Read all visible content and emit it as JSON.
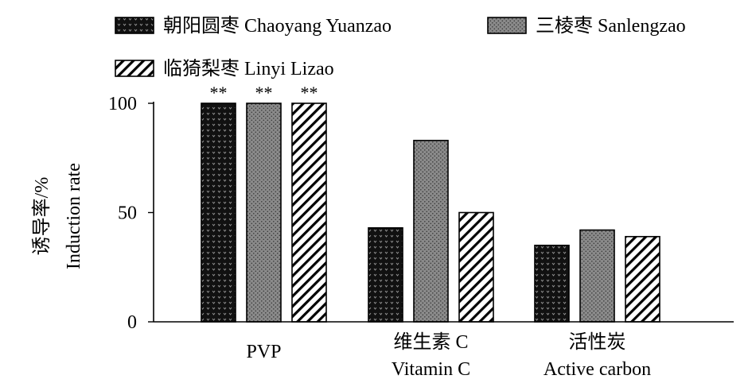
{
  "chart_data": {
    "type": "bar",
    "title": "",
    "xlabel": "",
    "ylabel_cn": "诱导率/%",
    "ylabel_en": "Induction rate",
    "ylim": [
      0,
      100
    ],
    "yticks": [
      0,
      50,
      100
    ],
    "grid": false,
    "legend_position": "top",
    "categories": [
      {
        "cn": "",
        "en": "PVP"
      },
      {
        "cn": "维生素 C",
        "en": "Vitamin C"
      },
      {
        "cn": "活性炭",
        "en": "Active carbon"
      }
    ],
    "series": [
      {
        "name": "朝阳圆枣 Chaoyang Yuanzao",
        "pattern": "dark-dotted",
        "values": [
          100,
          43,
          35
        ]
      },
      {
        "name": "三棱枣 Sanlengzao",
        "pattern": "grey-dotted",
        "values": [
          100,
          83,
          42
        ]
      },
      {
        "name": "临猗梨枣 Linyi Lizao",
        "pattern": "hatched",
        "values": [
          100,
          50,
          39
        ]
      }
    ],
    "annotations": [
      {
        "category": 0,
        "series": 0,
        "text": "**"
      },
      {
        "category": 0,
        "series": 1,
        "text": "**"
      },
      {
        "category": 0,
        "series": 2,
        "text": "**"
      }
    ]
  }
}
